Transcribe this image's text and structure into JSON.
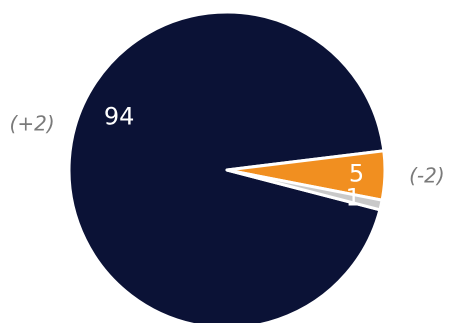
{
  "chart_data": {
    "type": "pie",
    "slices": [
      {
        "label": "94",
        "value": 94,
        "color": "#0b1236",
        "change": "(+2)"
      },
      {
        "label": "5",
        "value": 5,
        "color": "#f18f20",
        "change": "(-2)"
      },
      {
        "label": "1",
        "value": 1,
        "color": "#c9c9c9",
        "change": ""
      }
    ]
  }
}
